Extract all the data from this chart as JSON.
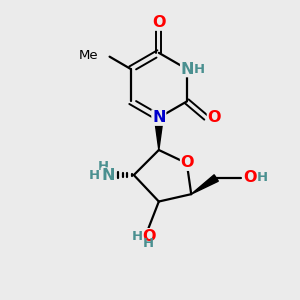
{
  "bg_color": "#ebebeb",
  "bond_color": "#000000",
  "N_color": "#0000cc",
  "O_color": "#ff0000",
  "H_color": "#4a9090",
  "label_fontsize": 11.5,
  "small_fontsize": 9.5,
  "figsize": [
    3.0,
    3.0
  ],
  "dpi": 100,
  "xlim": [
    0,
    10
  ],
  "ylim": [
    0,
    10
  ]
}
